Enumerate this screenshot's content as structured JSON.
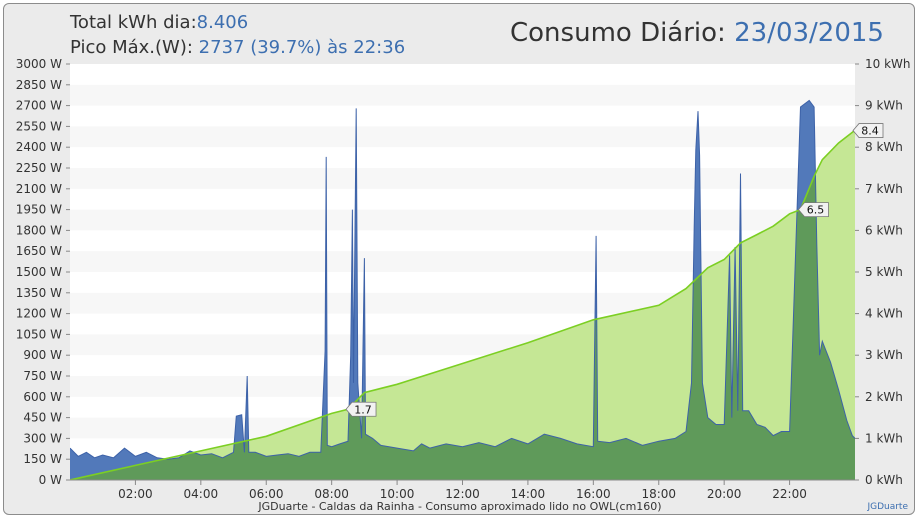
{
  "header": {
    "total_label": "Total kWh dia:",
    "total_value": "8.406",
    "peak_label": "Pico Máx.(W):",
    "peak_value": "2737 (39.7%) às 22:36",
    "title_label": "Consumo Diário:",
    "title_date": "23/03/2015"
  },
  "footer": "JGDuarte  -  Caldas da Rainha  -  Consumo aproximado lido no OWL(cm160)",
  "credit": "JGDuarte",
  "colors": {
    "plot_bg": "#f7f7f7",
    "power_fill": "#5279ba",
    "power_line": "#3d62a8",
    "energy_fill": "#bfe48a",
    "energy_line": "#7ccf23",
    "overlap_fill": "#5f9a5a",
    "frame_bg": "#ebebeb"
  },
  "chart_data": {
    "type": "area",
    "x_unit": "hh:mm",
    "xlim": [
      "00:00",
      "24:00"
    ],
    "x_ticks": [
      "02:00",
      "04:00",
      "06:00",
      "08:00",
      "10:00",
      "12:00",
      "14:00",
      "16:00",
      "18:00",
      "20:00",
      "22:00"
    ],
    "y_left": {
      "ylim": [
        0,
        3000
      ],
      "ticks": [
        "0 W",
        "150 W",
        "300 W",
        "450 W",
        "600 W",
        "750 W",
        "900 W",
        "1050 W",
        "1200 W",
        "1350 W",
        "1500 W",
        "1650 W",
        "1800 W",
        "1950 W",
        "2100 W",
        "2250 W",
        "2400 W",
        "2550 W",
        "2700 W",
        "2850 W",
        "3000 W"
      ]
    },
    "y_right": {
      "ylim": [
        0,
        10
      ],
      "ticks": [
        "0 kWh",
        "1 kWh",
        "2 kWh",
        "3 kWh",
        "4 kWh",
        "5 kWh",
        "6 kWh",
        "7 kWh",
        "8 kWh",
        "9 kWh",
        "10 kWh"
      ]
    },
    "grid": "horizontal bands",
    "series": [
      {
        "name": "",
        "unit": "W",
        "axis": "left",
        "points": [
          [
            "00:00",
            230
          ],
          [
            "00:15",
            170
          ],
          [
            "00:30",
            200
          ],
          [
            "00:45",
            160
          ],
          [
            "01:00",
            180
          ],
          [
            "01:20",
            160
          ],
          [
            "01:40",
            230
          ],
          [
            "02:00",
            170
          ],
          [
            "02:20",
            200
          ],
          [
            "02:40",
            160
          ],
          [
            "03:00",
            150
          ],
          [
            "03:20",
            160
          ],
          [
            "03:40",
            210
          ],
          [
            "04:00",
            180
          ],
          [
            "04:20",
            190
          ],
          [
            "04:40",
            160
          ],
          [
            "05:00",
            200
          ],
          [
            "05:05",
            460
          ],
          [
            "05:15",
            470
          ],
          [
            "05:20",
            200
          ],
          [
            "05:25",
            750
          ],
          [
            "05:28",
            200
          ],
          [
            "05:40",
            200
          ],
          [
            "06:00",
            170
          ],
          [
            "06:20",
            180
          ],
          [
            "06:40",
            190
          ],
          [
            "07:00",
            170
          ],
          [
            "07:20",
            200
          ],
          [
            "07:40",
            200
          ],
          [
            "07:48",
            930
          ],
          [
            "07:50",
            2330
          ],
          [
            "07:52",
            250
          ],
          [
            "08:00",
            240
          ],
          [
            "08:15",
            260
          ],
          [
            "08:30",
            280
          ],
          [
            "08:35",
            900
          ],
          [
            "08:38",
            1950
          ],
          [
            "08:40",
            700
          ],
          [
            "08:45",
            2680
          ],
          [
            "08:48",
            700
          ],
          [
            "08:55",
            300
          ],
          [
            "09:00",
            1600
          ],
          [
            "09:02",
            330
          ],
          [
            "09:15",
            300
          ],
          [
            "09:30",
            250
          ],
          [
            "10:00",
            230
          ],
          [
            "10:30",
            210
          ],
          [
            "10:45",
            260
          ],
          [
            "11:00",
            230
          ],
          [
            "11:30",
            260
          ],
          [
            "12:00",
            240
          ],
          [
            "12:30",
            270
          ],
          [
            "13:00",
            240
          ],
          [
            "13:30",
            300
          ],
          [
            "14:00",
            260
          ],
          [
            "14:30",
            330
          ],
          [
            "15:00",
            300
          ],
          [
            "15:30",
            260
          ],
          [
            "16:00",
            240
          ],
          [
            "16:05",
            1760
          ],
          [
            "16:08",
            280
          ],
          [
            "16:30",
            270
          ],
          [
            "17:00",
            300
          ],
          [
            "17:30",
            250
          ],
          [
            "18:00",
            280
          ],
          [
            "18:30",
            300
          ],
          [
            "18:50",
            350
          ],
          [
            "19:00",
            700
          ],
          [
            "19:05",
            1830
          ],
          [
            "19:08",
            2380
          ],
          [
            "19:12",
            2660
          ],
          [
            "19:15",
            2340
          ],
          [
            "19:20",
            700
          ],
          [
            "19:30",
            450
          ],
          [
            "19:45",
            400
          ],
          [
            "20:00",
            400
          ],
          [
            "20:10",
            1620
          ],
          [
            "20:14",
            450
          ],
          [
            "20:20",
            1680
          ],
          [
            "20:25",
            500
          ],
          [
            "20:30",
            2210
          ],
          [
            "20:34",
            500
          ],
          [
            "20:45",
            500
          ],
          [
            "21:00",
            400
          ],
          [
            "21:15",
            380
          ],
          [
            "21:30",
            320
          ],
          [
            "21:45",
            350
          ],
          [
            "22:00",
            350
          ],
          [
            "22:20",
            2690
          ],
          [
            "22:36",
            2737
          ],
          [
            "22:45",
            2690
          ],
          [
            "22:50",
            1700
          ],
          [
            "22:55",
            900
          ],
          [
            "23:00",
            1000
          ],
          [
            "23:15",
            850
          ],
          [
            "23:30",
            650
          ],
          [
            "23:45",
            430
          ],
          [
            "23:55",
            320
          ],
          [
            "24:00",
            300
          ]
        ]
      },
      {
        "name": "",
        "unit": "kWh",
        "axis": "right",
        "points": [
          [
            "00:00",
            0
          ],
          [
            "02:00",
            0.35
          ],
          [
            "04:00",
            0.7
          ],
          [
            "06:00",
            1.05
          ],
          [
            "08:00",
            1.6
          ],
          [
            "08:30",
            1.7
          ],
          [
            "09:00",
            2.1
          ],
          [
            "10:00",
            2.3
          ],
          [
            "12:00",
            2.8
          ],
          [
            "14:00",
            3.3
          ],
          [
            "16:00",
            3.85
          ],
          [
            "18:00",
            4.2
          ],
          [
            "18:50",
            4.6
          ],
          [
            "19:30",
            5.1
          ],
          [
            "20:00",
            5.3
          ],
          [
            "20:30",
            5.7
          ],
          [
            "21:00",
            5.9
          ],
          [
            "21:30",
            6.1
          ],
          [
            "22:00",
            6.4
          ],
          [
            "22:20",
            6.5
          ],
          [
            "22:45",
            7.3
          ],
          [
            "23:00",
            7.7
          ],
          [
            "23:30",
            8.1
          ],
          [
            "24:00",
            8.406
          ]
        ]
      }
    ],
    "annotations": [
      {
        "x": "08:30",
        "value": "1.7"
      },
      {
        "x": "22:20",
        "value": "6.5"
      },
      {
        "x": "24:00",
        "value": "8.4"
      }
    ]
  }
}
